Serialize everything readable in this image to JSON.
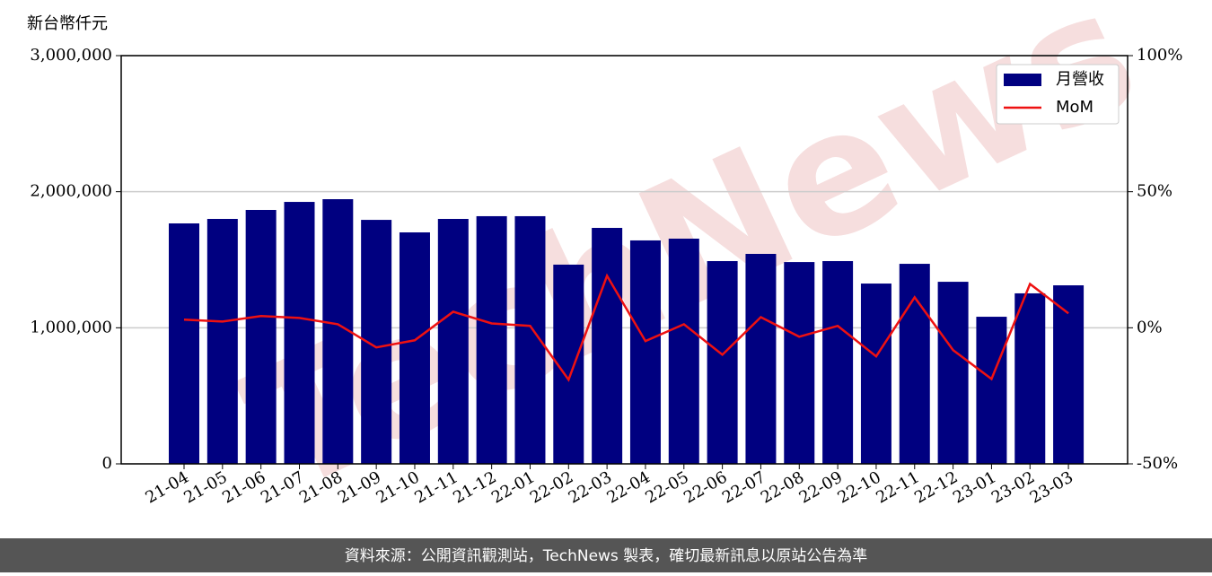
{
  "chart_data": {
    "type": "bar-line",
    "y_label": "新台幣仟元",
    "footer": "資料來源：公開資訊觀測站，TechNews 製表，確切最新訊息以原站公告為準",
    "watermark": "TechNews",
    "categories": [
      "21-04",
      "21-05",
      "21-06",
      "21-07",
      "21-08",
      "21-09",
      "21-10",
      "21-11",
      "21-12",
      "22-01",
      "22-02",
      "22-03",
      "22-04",
      "22-05",
      "22-06",
      "22-07",
      "22-08",
      "22-09",
      "22-10",
      "22-11",
      "22-12",
      "23-01",
      "23-02",
      "23-03"
    ],
    "series": [
      {
        "name": "月營收",
        "type": "bar",
        "color": "#000080",
        "values": [
          1767000,
          1800000,
          1866000,
          1925000,
          1945000,
          1793000,
          1701000,
          1800000,
          1820000,
          1820000,
          1464000,
          1734000,
          1642000,
          1655000,
          1490000,
          1543000,
          1483000,
          1490000,
          1325000,
          1470000,
          1338000,
          1081000,
          1253000,
          1312000
        ]
      },
      {
        "name": "MoM",
        "type": "line",
        "axis": "y2",
        "color": "#ee1111",
        "values": [
          3.0,
          2.3,
          4.3,
          3.6,
          1.3,
          -7.2,
          -4.6,
          5.9,
          1.6,
          0.7,
          -19.1,
          19.1,
          -4.9,
          1.3,
          -9.9,
          3.9,
          -3.3,
          0.7,
          -10.5,
          11.2,
          -8.2,
          -18.8,
          16.1,
          5.3
        ]
      }
    ],
    "ylim": [
      0,
      3000000
    ],
    "yticks": [
      0,
      {
        "value": 1000000,
        "label": "1,000,000"
      },
      {
        "value": 2000000,
        "label": "2,000,000"
      },
      {
        "value": 3000000,
        "label": "3,000,000"
      }
    ],
    "y2lim": [
      -50,
      100
    ],
    "y2ticks": [
      {
        "value": -50,
        "label": "-50%"
      },
      {
        "value": 0,
        "label": "0%"
      },
      {
        "value": 50,
        "label": "50%"
      },
      {
        "value": 100,
        "label": "100%"
      }
    ],
    "grid": true,
    "legend": "upper right"
  }
}
